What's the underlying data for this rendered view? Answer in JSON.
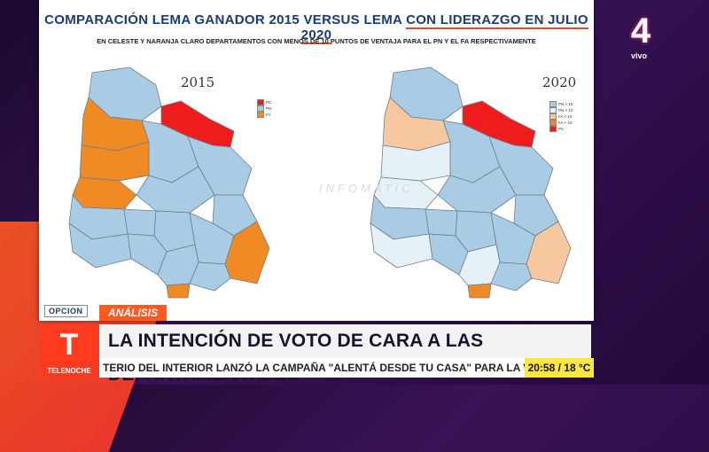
{
  "slide": {
    "title_part1": "COMPARACIÓN LEMA GANADOR 2015 VERSUS LEMA ",
    "title_part2": "CON LIDERAZGO EN JULIO 2020",
    "subtitle": "EN CELESTE Y NARANJA CLARO DEPARTAMENTOS CON MENOS DE 10 PUNTOS DE VENTAJA PARA EL PN Y EL FA RESPECTIVAMENTE",
    "map_left": {
      "year": "2015",
      "legend": [
        {
          "label": "PC",
          "color": "#ee1c1c"
        },
        {
          "label": "PN",
          "color": "#a9cbe4"
        },
        {
          "label": "FA",
          "color": "#f08a24"
        }
      ]
    },
    "map_right": {
      "year": "2020",
      "legend": [
        {
          "label": "PN > 10",
          "color": "#a9cbe4"
        },
        {
          "label": "PN < 10",
          "color": "#e6f0f7"
        },
        {
          "label": "FA < 10",
          "color": "#f7c7a0"
        },
        {
          "label": "FA > 10",
          "color": "#f08a24"
        },
        {
          "label": "PC",
          "color": "#ee1c1c"
        }
      ]
    },
    "watermark": "INFOMATIC"
  },
  "colors": {
    "pn": "#a9cbe4",
    "pn_light": "#e6f0f7",
    "fa": "#f08a24",
    "fa_light": "#f7c7a0",
    "pc": "#ee1c1c"
  },
  "map_2015": {
    "artigas": "pn",
    "salto": "fa",
    "rivera": "pc",
    "paysandu": "fa",
    "tacuarembo": "pn",
    "cerro_largo": "pn",
    "rionegro": "fa",
    "durazno": "pn",
    "treintaytres": "pn",
    "soriano": "pn",
    "flores": "pn",
    "florida": "pn",
    "lavalleja": "pn",
    "rocha": "fa",
    "colonia": "pn",
    "sanjose": "pn",
    "canelones": "pn",
    "maldonado": "pn",
    "montevideo": "fa"
  },
  "map_2020": {
    "artigas": "pn",
    "salto": "fa_light",
    "rivera": "pc",
    "paysandu": "pn_light",
    "tacuarembo": "pn",
    "cerro_largo": "pn",
    "rionegro": "pn_light",
    "durazno": "pn",
    "treintaytres": "pn",
    "soriano": "pn",
    "flores": "pn",
    "florida": "pn",
    "lavalleja": "pn",
    "rocha": "fa_light",
    "colonia": "pn_light",
    "sanjose": "pn",
    "canelones": "pn_light",
    "maldonado": "pn",
    "montevideo": "fa"
  },
  "lower_third": {
    "logo": "OPCION",
    "tag": "ANÁLISIS",
    "headline": "LA INTENCIÓN DE VOTO DE CARA A LAS DEPARTAMENTALES",
    "ticker": "TERIO DEL INTERIOR LANZÓ LA CAMPAÑA \"ALENTÁ DESDE TU CASA\" PARA LA VUELTA DEL FÚTBOL",
    "clock": "20:58 / 18 °C",
    "program": "TELENOCHE",
    "program_letter": "T"
  },
  "channel": {
    "number": "4",
    "status": "vivo"
  }
}
